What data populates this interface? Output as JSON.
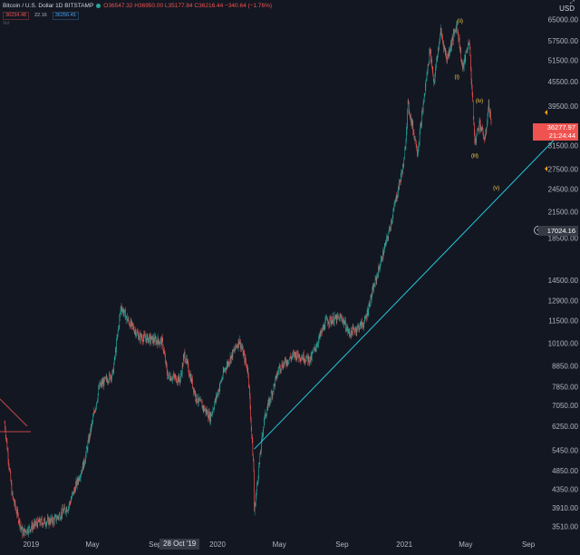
{
  "header": {
    "title": "Bitcoin / U.S. Dollar   1D   BITSTAMP",
    "ohlc": "O36547.32 H36950.00 L35177.84 C36216.44 −340.64 (−1.76%)",
    "indicator_values": [
      "36234.48",
      "22.16",
      "36256.45"
    ],
    "vol_label": "Vol",
    "currency": "USD",
    "corner_icon": "zoom-icon"
  },
  "price_axis": {
    "labels": [
      "65000.00",
      "57500.00",
      "51500.00",
      "45500.00",
      "39500.00",
      "31500.00",
      "27500.00",
      "24500.00",
      "21500.00",
      "18500.00",
      "14500.00",
      "12900.00",
      "11500.00",
      "10100.00",
      "8850.00",
      "7850.00",
      "7050.00",
      "6250.00",
      "5450.00",
      "4850.00",
      "4350.00",
      "3910.00",
      "3510.00"
    ],
    "current_price": "36277.97",
    "countdown": "21:24:44",
    "crosshair_price": "17024.16"
  },
  "time_axis": {
    "labels": [
      "2019",
      "May",
      "Sep",
      "2020",
      "May",
      "Sep",
      "2021",
      "May",
      "Sep"
    ],
    "crosshair_date": "28 Oct '19"
  },
  "annotations": {
    "wave_labels": [
      "(i)",
      "(ii)",
      "(iii)",
      "(iv)",
      "(v)"
    ]
  },
  "colors": {
    "background": "#131722",
    "up": "#26a69a",
    "down": "#ef5350",
    "trendline": "#26c6da",
    "wave_label": "#f7d04a",
    "grid": "#1e222d"
  },
  "chart_data": {
    "type": "candlestick",
    "title": "Bitcoin / U.S. Dollar",
    "interval": "1D",
    "exchange": "BITSTAMP",
    "scale": "log",
    "ylim": [
      3300,
      70000
    ],
    "x_range": [
      "2018-11",
      "2021-10"
    ],
    "grid": false,
    "series": [
      {
        "name": "BTCUSD",
        "values": [
          {
            "x": "2018-11-10",
            "y": 6400
          },
          {
            "x": "2018-11-25",
            "y": 4200
          },
          {
            "x": "2018-12-15",
            "y": 3400
          },
          {
            "x": "2019-01-15",
            "y": 3600
          },
          {
            "x": "2019-02-15",
            "y": 3650
          },
          {
            "x": "2019-03-15",
            "y": 3950
          },
          {
            "x": "2019-04-15",
            "y": 5100
          },
          {
            "x": "2019-05-15",
            "y": 7900
          },
          {
            "x": "2019-06-10",
            "y": 8500
          },
          {
            "x": "2019-06-26",
            "y": 12500
          },
          {
            "x": "2019-07-10",
            "y": 11500
          },
          {
            "x": "2019-08-01",
            "y": 10500
          },
          {
            "x": "2019-09-15",
            "y": 10200
          },
          {
            "x": "2019-09-25",
            "y": 8400
          },
          {
            "x": "2019-10-20",
            "y": 8200
          },
          {
            "x": "2019-10-28",
            "y": 9500
          },
          {
            "x": "2019-11-20",
            "y": 7400
          },
          {
            "x": "2019-12-18",
            "y": 6600
          },
          {
            "x": "2020-01-15",
            "y": 8700
          },
          {
            "x": "2020-02-13",
            "y": 10300
          },
          {
            "x": "2020-03-01",
            "y": 8600
          },
          {
            "x": "2020-03-12",
            "y": 4850
          },
          {
            "x": "2020-03-13",
            "y": 3850
          },
          {
            "x": "2020-04-01",
            "y": 6500
          },
          {
            "x": "2020-05-01",
            "y": 8800
          },
          {
            "x": "2020-06-01",
            "y": 9500
          },
          {
            "x": "2020-07-01",
            "y": 9200
          },
          {
            "x": "2020-08-01",
            "y": 11500
          },
          {
            "x": "2020-09-01",
            "y": 11700
          },
          {
            "x": "2020-09-15",
            "y": 10700
          },
          {
            "x": "2020-10-15",
            "y": 11400
          },
          {
            "x": "2020-11-01",
            "y": 13800
          },
          {
            "x": "2020-12-01",
            "y": 19000
          },
          {
            "x": "2021-01-01",
            "y": 29000
          },
          {
            "x": "2021-01-08",
            "y": 40000
          },
          {
            "x": "2021-01-27",
            "y": 30500
          },
          {
            "x": "2021-02-20",
            "y": 55000
          },
          {
            "x": "2021-02-28",
            "y": 45500
          },
          {
            "x": "2021-03-13",
            "y": 61000
          },
          {
            "x": "2021-03-25",
            "y": 52000
          },
          {
            "x": "2021-04-14",
            "y": 63500
          },
          {
            "x": "2021-04-25",
            "y": 49000
          },
          {
            "x": "2021-05-08",
            "y": 58000
          },
          {
            "x": "2021-05-19",
            "y": 32000
          },
          {
            "x": "2021-05-28",
            "y": 36000
          },
          {
            "x": "2021-06-08",
            "y": 32500
          },
          {
            "x": "2021-06-15",
            "y": 40000
          },
          {
            "x": "2021-06-20",
            "y": 36277.97
          }
        ]
      }
    ],
    "trendline": {
      "from": {
        "x": "2020-03-13",
        "y": 5500
      },
      "to": {
        "x": "2021-10-25",
        "y": 33000
      }
    },
    "wave_points": [
      {
        "label": "(i)",
        "x": "2021-04-14",
        "y": 46500
      },
      {
        "label": "(ii)",
        "x": "2021-04-20",
        "y": 64000
      },
      {
        "label": "(iii)",
        "x": "2021-05-19",
        "y": 29500
      },
      {
        "label": "(iv)",
        "x": "2021-05-28",
        "y": 40500
      },
      {
        "label": "(v)",
        "x": "2021-06-30",
        "y": 24500
      }
    ]
  }
}
